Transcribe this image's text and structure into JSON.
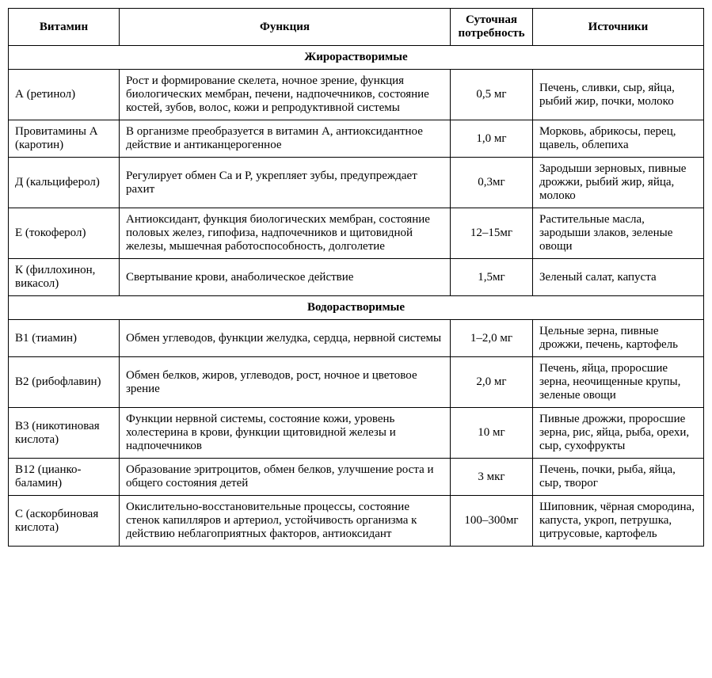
{
  "headers": {
    "vitamin": "Витамин",
    "function": "Функция",
    "daily": "Суточная потребность",
    "sources": "Источники"
  },
  "sections": {
    "fat": "Жирорастворимые",
    "water": "Водорастворимые"
  },
  "rows": {
    "a": {
      "vitamin": "А (ретинол)",
      "function": "Рост и формирование скелета, ночное зрение, функция биологических мембран, печени, надпочечников, состояние костей, зубов, волос, кожи и репродуктивной системы",
      "daily": "0,5 мг",
      "sources": "Печень, сливки, сыр, яйца, рыбий жир, почки, молоко"
    },
    "proA": {
      "vitamin": "Провитамины А (каротин)",
      "function": "В организме преобразуется в витамин А, антиоксидантное действие и антиканцероген­ное",
      "daily": "1,0 мг",
      "sources": "Морковь, абрикосы, перец, щавель, облепиха"
    },
    "d": {
      "vitamin": "Д (кальциферол)",
      "function": "Регулирует обмен Ca и P, укрепляет зубы, предупреждает рахит",
      "daily": "0,3мг",
      "sources": "Зародыши зерновых, пивные дрожжи, рыбий жир, яйца, молоко"
    },
    "e": {
      "vitamin": "Е (токоферол)",
      "function": "Антиоксидант, функция биологических мембран, состояние половых желез, гипофиза, надпочечников и щитовидной железы, мышечная работоспособность, долголетие",
      "daily": "12–15мг",
      "sources": "Растительные масла, зародыши злаков, зеленые овощи"
    },
    "k": {
      "vitamin": "К (филлохинон, викасол)",
      "function": "Свертывание крови, анаболическое действие",
      "daily": "1,5мг",
      "sources": "Зеленый салат, капуста"
    },
    "b1": {
      "vitamin": "В1 (тиамин)",
      "function": "Обмен углеводов, функции желудка, сердца, нервной системы",
      "daily": "1–2,0 мг",
      "sources": "Цельные зерна, пивные дрожжи, печень, картофель"
    },
    "b2": {
      "vitamin": "В2 (рибофлавин)",
      "function": "Обмен белков, жиров, углеводов, рост, ночное и цветовое зрение",
      "daily": "2,0 мг",
      "sources": "Печень, яйца, проросшие зерна, неочищенные крупы, зеленые овощи"
    },
    "b3": {
      "vitamin": "В3 (никотиновая кислота)",
      "function": "Функции нервной системы, состояние кожи, уровень холестерина в крови, функции щитовидной железы и надпочечников",
      "daily": "10 мг",
      "sources": "Пивные дрожжи, проросшие зерна, рис, яйца, рыба, орехи, сыр, сухофрукты"
    },
    "b12": {
      "vitamin": "В12 (цианко­баламин)",
      "function": "Образование эритроцитов, обмен белков, улучшение роста и общего состояния детей",
      "daily": "3 мкг",
      "sources": "Печень, почки, рыба, яйца, сыр, творог"
    },
    "c": {
      "vitamin": "С (аскорбиновая кислота)",
      "function": "Окислительно-восстановительные процессы, состояние стенок капилляров и артериол, устойчивость организма к действию неблагоприятных факторов, антиоксидант",
      "daily": "100–300мг",
      "sources": "Шиповник, чёрная смородина, капуста, укроп, петрушка, цитрусовые, картофель"
    }
  }
}
